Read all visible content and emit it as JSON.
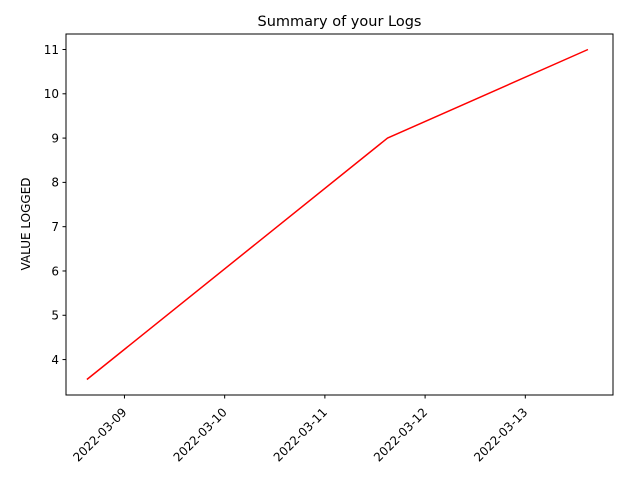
{
  "chart_data": {
    "type": "line",
    "title": "Summary of your Logs",
    "xlabel": "",
    "ylabel": "VALUE LOGGED",
    "x_ticks": [
      "2022-03-09",
      "2022-03-10",
      "2022-03-11",
      "2022-03-12",
      "2022-03-13"
    ],
    "y_ticks": [
      4,
      5,
      6,
      7,
      8,
      9,
      10,
      11
    ],
    "xlim": [
      "2022-03-08 10:00",
      "2022-03-13 21:00"
    ],
    "ylim": [
      3.2,
      11.35
    ],
    "grid": false,
    "series": [
      {
        "color": "#ff0000",
        "x": [
          "2022-03-08 15:00",
          "2022-03-11 15:00",
          "2022-03-13 15:00"
        ],
        "y": [
          3.55,
          9.0,
          11.0
        ]
      }
    ]
  }
}
